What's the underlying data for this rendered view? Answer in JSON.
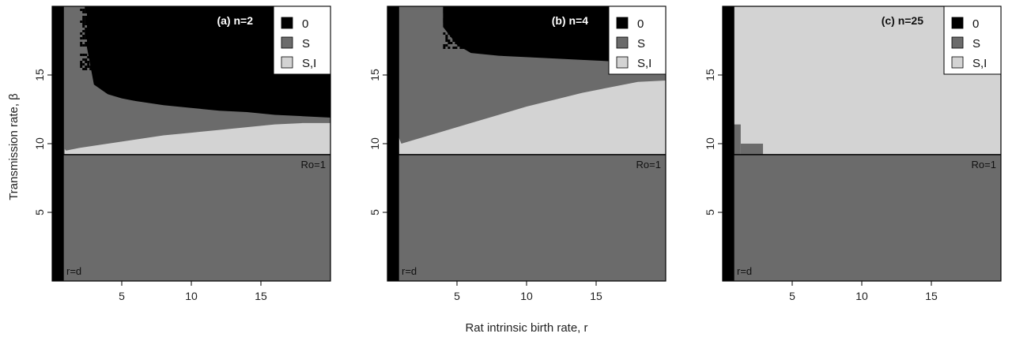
{
  "figure": {
    "xlabel": "Rat intrinsic birth rate, r",
    "ylabel": "Transmission rate, β"
  },
  "colors": {
    "zero": "#000000",
    "S": "#6b6b6b",
    "SI": "#d3d3d3"
  },
  "chart_data": [
    {
      "type": "heatmap",
      "panel_label": "(a) n=2",
      "xlim": [
        0,
        20
      ],
      "ylim": [
        0,
        20
      ],
      "xticks": [
        5,
        10,
        15
      ],
      "yticks": [
        5,
        10,
        15
      ],
      "legend": [
        "0",
        "S",
        "S,I"
      ],
      "legend_position": "top-right",
      "annotations": {
        "ro_line": "Ro=1",
        "rd_line": "r=d"
      },
      "regions": {
        "extinction_strip_r_max": 0.5,
        "ro1_beta": 9.2,
        "si_upper_boundary": {
          "r": [
            0.9,
            1.0,
            2,
            4,
            6,
            8,
            10,
            12,
            14,
            16,
            18,
            20
          ],
          "beta": [
            9.6,
            9.5,
            9.7,
            10.0,
            10.3,
            10.6,
            10.8,
            11.0,
            11.2,
            11.4,
            11.5,
            11.5
          ]
        },
        "zero_lower_boundary": {
          "r": [
            2.5,
            3,
            4,
            5,
            6,
            8,
            10,
            12,
            14,
            16,
            18,
            20
          ],
          "beta": [
            17.0,
            14.3,
            13.6,
            13.3,
            13.1,
            12.8,
            12.6,
            12.4,
            12.3,
            12.1,
            12.0,
            11.9
          ]
        },
        "speckle": {
          "r_range": [
            2.0,
            7.5
          ],
          "beta_range": [
            15.5,
            20
          ]
        }
      }
    },
    {
      "type": "heatmap",
      "panel_label": "(b) n=4",
      "xlim": [
        0,
        20
      ],
      "ylim": [
        0,
        20
      ],
      "xticks": [
        5,
        10,
        15
      ],
      "yticks": [
        5,
        10,
        15
      ],
      "legend": [
        "0",
        "S",
        "S,I"
      ],
      "legend_position": "top-right",
      "annotations": {
        "ro_line": "Ro=1",
        "rd_line": "r=d"
      },
      "regions": {
        "extinction_strip_r_max": 0.5,
        "ro1_beta": 9.2,
        "si_upper_boundary": {
          "r": [
            0.8,
            1.0,
            2,
            4,
            6,
            8,
            10,
            12,
            14,
            16,
            18,
            20
          ],
          "beta": [
            10.5,
            10.0,
            10.3,
            10.9,
            11.5,
            12.1,
            12.7,
            13.2,
            13.7,
            14.1,
            14.5,
            14.6
          ]
        },
        "zero_lower_boundary": {
          "r": [
            4.0,
            5,
            6,
            8,
            10,
            12,
            14,
            16,
            18,
            20
          ],
          "beta": [
            18.5,
            17.2,
            16.6,
            16.4,
            16.3,
            16.2,
            16.1,
            16.0,
            15.8,
            15.7
          ]
        },
        "speckle": {
          "r_range": [
            4.0,
            7.5
          ],
          "beta_range": [
            17.0,
            20
          ]
        }
      }
    },
    {
      "type": "heatmap",
      "panel_label": "(c) n=25",
      "xlim": [
        0,
        20
      ],
      "ylim": [
        0,
        20
      ],
      "xticks": [
        5,
        10,
        15
      ],
      "yticks": [
        5,
        10,
        15
      ],
      "legend": [
        "0",
        "S",
        "S,I"
      ],
      "legend_position": "top-right",
      "annotations": {
        "ro_line": "Ro=1",
        "rd_line": "r=d"
      },
      "regions": {
        "extinction_strip_r_max": 0.5,
        "ro1_beta": 9.2,
        "s_steps": [
          {
            "r": [
              0.5,
              1.3
            ],
            "beta_top": 11.4
          },
          {
            "r": [
              1.3,
              2.9
            ],
            "beta_top": 10.0
          }
        ]
      }
    }
  ]
}
